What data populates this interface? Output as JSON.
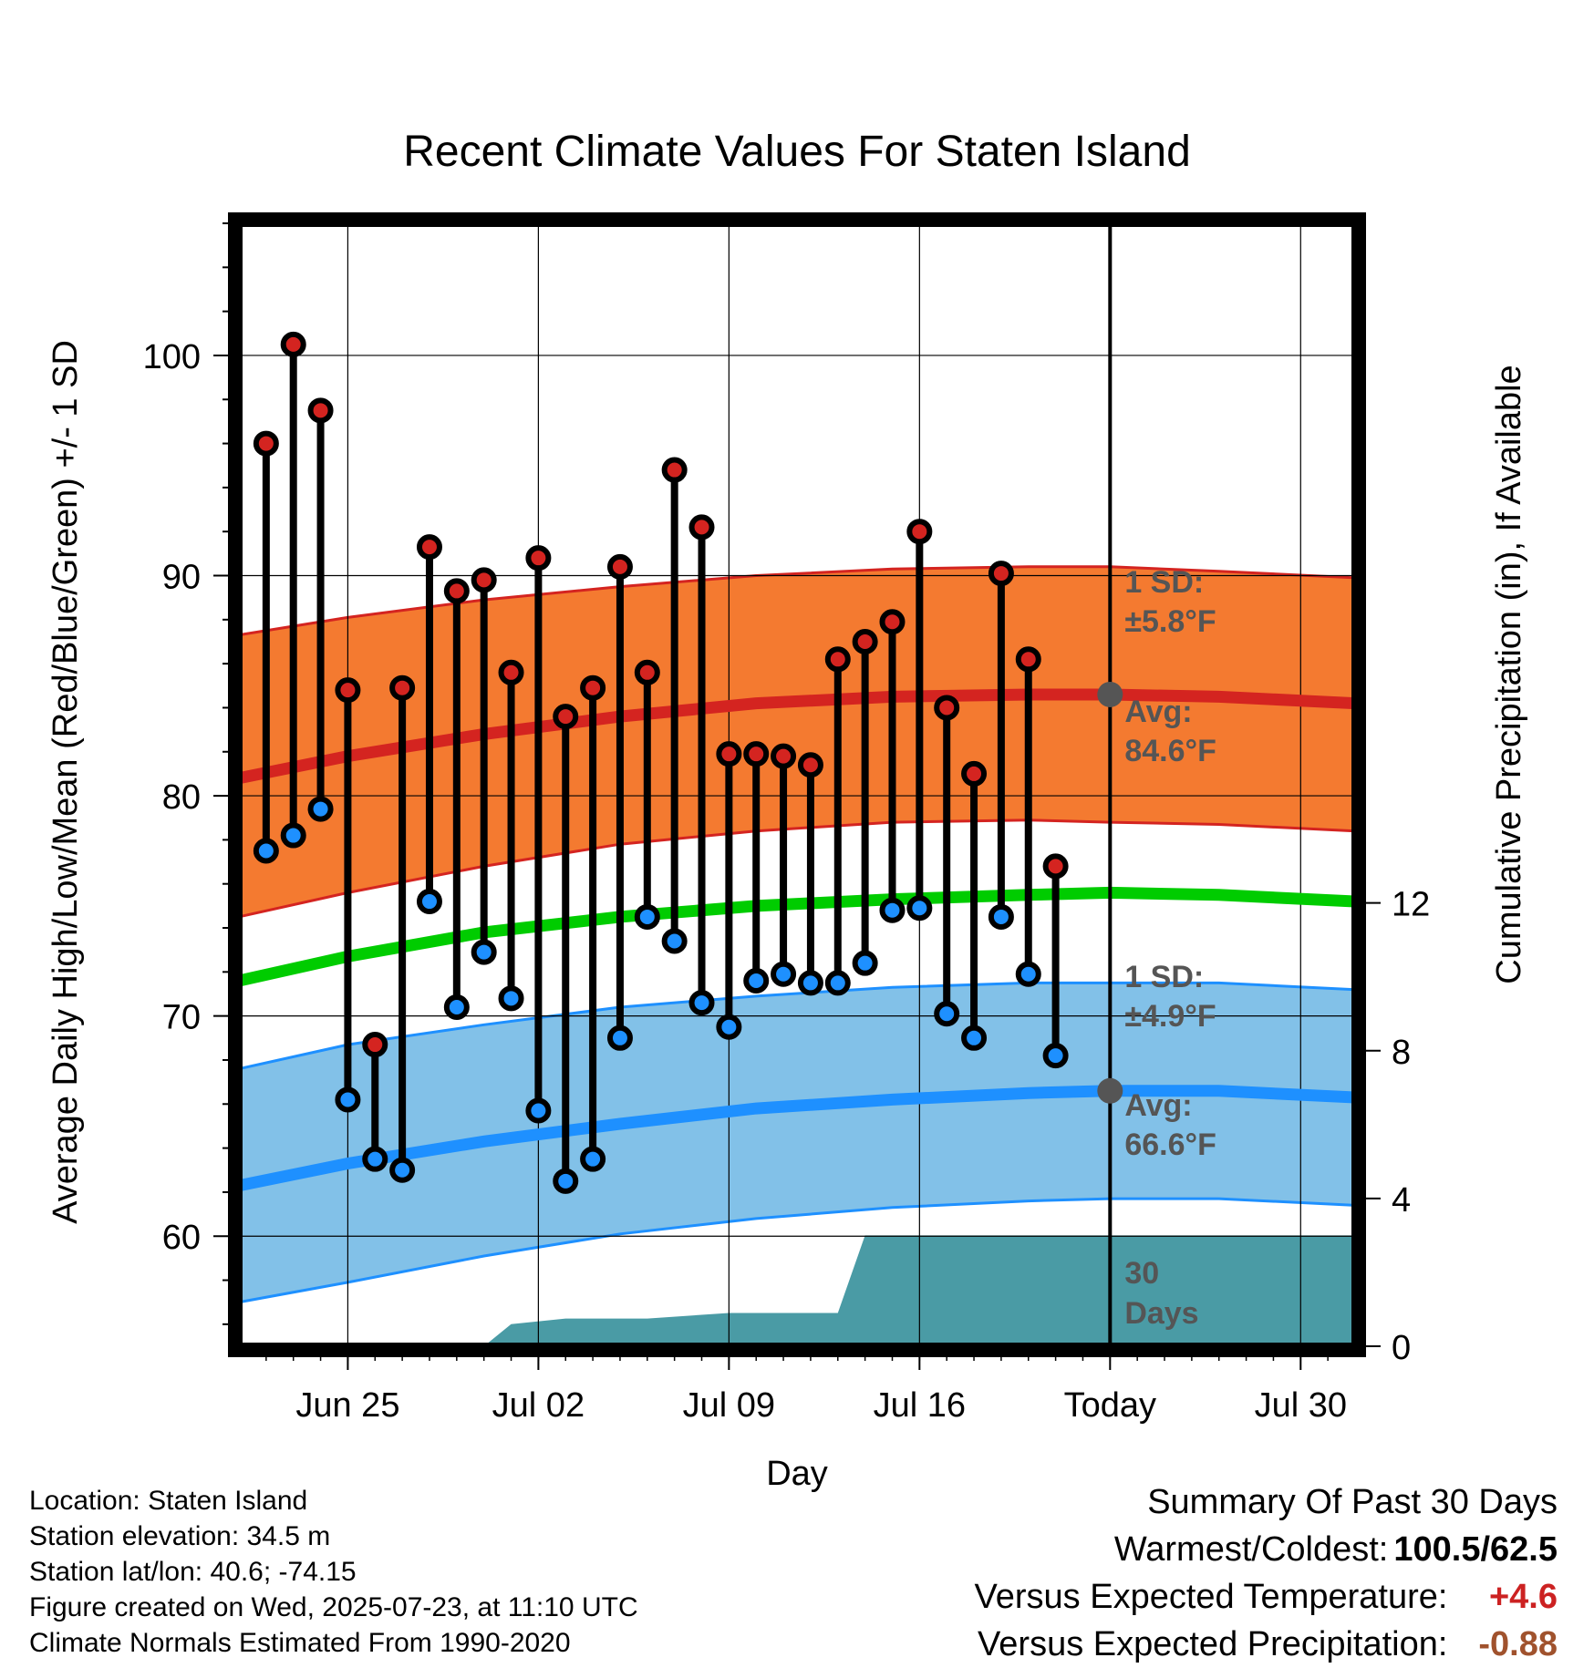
{
  "colors": {
    "high_band": "#f47a30",
    "high_avg": "#d42420",
    "mean_line": "#00cc00",
    "low_band": "#82c1e8",
    "low_avg": "#1e90ff",
    "precip": "#4a9ba5",
    "high_dot": "#d42420",
    "low_dot": "#1e90ff",
    "temp_anomaly": "#cc2222",
    "precip_anomaly": "#a0522d"
  },
  "chart_data": {
    "type": "line",
    "title": "Recent Climate Values For Staten Island",
    "xlabel": "Day",
    "ylabel": "Average Daily High/Low/Mean (Red/Blue/Green) +/- 1 SD",
    "y2label": "Cumulative Precipitation (in), If Available",
    "xlim": [
      "2025-06-21",
      "2025-08-01"
    ],
    "ylim": [
      55,
      106
    ],
    "y2lim": [
      0,
      30.4
    ],
    "x_ticks": [
      {
        "date": "2025-06-25",
        "label": "Jun 25"
      },
      {
        "date": "2025-07-02",
        "label": "Jul 02"
      },
      {
        "date": "2025-07-09",
        "label": "Jul 09"
      },
      {
        "date": "2025-07-16",
        "label": "Jul 16"
      },
      {
        "date": "2025-07-23",
        "label": "Today"
      },
      {
        "date": "2025-07-30",
        "label": "Jul 30"
      }
    ],
    "y_ticks": [
      60,
      70,
      80,
      90,
      100
    ],
    "y2_ticks": [
      0,
      4,
      8,
      12
    ],
    "grid": true,
    "today": "2025-07-23",
    "observed": {
      "dates": [
        "2025-06-22",
        "2025-06-23",
        "2025-06-24",
        "2025-06-25",
        "2025-06-26",
        "2025-06-27",
        "2025-06-28",
        "2025-06-29",
        "2025-06-30",
        "2025-07-01",
        "2025-07-02",
        "2025-07-03",
        "2025-07-04",
        "2025-07-05",
        "2025-07-06",
        "2025-07-07",
        "2025-07-08",
        "2025-07-09",
        "2025-07-10",
        "2025-07-11",
        "2025-07-12",
        "2025-07-13",
        "2025-07-14",
        "2025-07-15",
        "2025-07-16",
        "2025-07-17",
        "2025-07-18",
        "2025-07-19",
        "2025-07-20",
        "2025-07-21",
        "2025-07-22"
      ],
      "high": [
        96.0,
        100.5,
        97.5,
        84.8,
        68.7,
        84.9,
        91.3,
        89.3,
        89.8,
        85.6,
        90.8,
        83.6,
        84.9,
        90.4,
        85.6,
        94.8,
        92.2,
        81.9,
        81.9,
        81.8,
        81.4,
        86.2,
        87.0,
        87.9,
        92.0,
        84.0,
        81.0,
        90.1,
        86.2,
        76.8,
        null
      ],
      "low": [
        77.5,
        78.2,
        79.4,
        66.2,
        63.5,
        63.0,
        75.2,
        70.4,
        72.9,
        70.8,
        65.7,
        62.5,
        63.5,
        69.0,
        74.5,
        73.4,
        70.6,
        69.5,
        71.6,
        71.9,
        71.5,
        71.5,
        72.4,
        74.8,
        74.9,
        70.1,
        69.0,
        74.5,
        71.9,
        68.2,
        null
      ]
    },
    "normals": {
      "dates": [
        "2025-06-21",
        "2025-06-25",
        "2025-06-30",
        "2025-07-05",
        "2025-07-10",
        "2025-07-15",
        "2025-07-20",
        "2025-07-23",
        "2025-07-27",
        "2025-08-01"
      ],
      "high_avg": [
        80.8,
        81.8,
        82.8,
        83.6,
        84.2,
        84.5,
        84.6,
        84.6,
        84.5,
        84.2
      ],
      "high_sd_upper": [
        87.3,
        88.1,
        88.9,
        89.5,
        90.0,
        90.3,
        90.4,
        90.4,
        90.2,
        89.9
      ],
      "high_sd_lower": [
        74.5,
        75.6,
        76.8,
        77.8,
        78.4,
        78.8,
        78.9,
        78.8,
        78.7,
        78.4
      ],
      "mean": [
        71.6,
        72.7,
        73.8,
        74.5,
        75.0,
        75.3,
        75.5,
        75.6,
        75.5,
        75.2
      ],
      "low_avg": [
        62.3,
        63.3,
        64.3,
        65.1,
        65.8,
        66.2,
        66.5,
        66.6,
        66.6,
        66.3
      ],
      "low_sd_upper": [
        67.6,
        68.7,
        69.6,
        70.4,
        70.9,
        71.3,
        71.5,
        71.5,
        71.5,
        71.2
      ],
      "low_sd_lower": [
        57.0,
        57.9,
        59.1,
        60.1,
        60.8,
        61.3,
        61.6,
        61.7,
        61.7,
        61.4
      ]
    },
    "precip_cumulative": {
      "dates": [
        "2025-06-21",
        "2025-06-29",
        "2025-06-30",
        "2025-07-01",
        "2025-07-03",
        "2025-07-06",
        "2025-07-09",
        "2025-07-13",
        "2025-07-14",
        "2025-07-16",
        "2025-07-23",
        "2025-08-01"
      ],
      "values": [
        0,
        0,
        0,
        0.6,
        0.75,
        0.75,
        0.9,
        0.9,
        3.0,
        3.0,
        3.0,
        3.0
      ]
    },
    "annotations": {
      "high_sd_line1": "1 SD:",
      "high_sd_line2": "±5.8°F",
      "high_avg_line1": "Avg:",
      "high_avg_line2": "84.6°F",
      "low_sd_line1": "1 SD:",
      "low_sd_line2": "±4.9°F",
      "low_avg_line1": "Avg:",
      "low_avg_line2": "66.6°F",
      "days_line1": "30",
      "days_line2": "Days"
    }
  },
  "footer": {
    "location": "Location: Staten Island",
    "elevation": "Station elevation: 34.5 m",
    "latlon": "Station lat/lon: 40.6; -74.15",
    "created": "Figure created on Wed, 2025-07-23, at 11:10 UTC",
    "normals": "Climate Normals Estimated From 1990-2020"
  },
  "summary": {
    "title": "Summary Of Past 30 Days",
    "warmest_coldest_label": "Warmest/Coldest:",
    "warmest": "100.5",
    "coldest": "62.5",
    "temp_label": "Versus Expected Temperature:",
    "temp_value": "+4.6",
    "precip_label": "Versus Expected Precipitation:",
    "precip_value": "-0.88"
  }
}
